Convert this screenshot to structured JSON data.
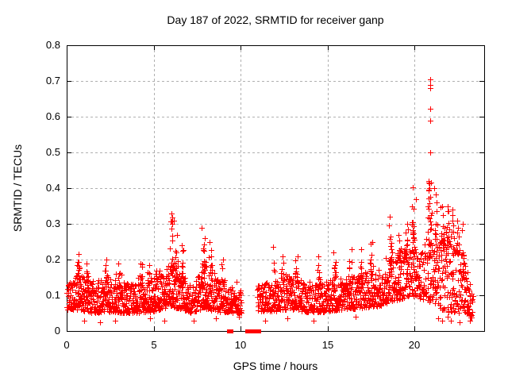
{
  "chart_data": {
    "type": "scatter",
    "title": "Day 187 of 2022, SRMTID for receiver ganp",
    "xlabel": "GPS time / hours",
    "ylabel": "SRMTID / TECUs",
    "xlim": [
      0,
      24
    ],
    "ylim": [
      0,
      0.8
    ],
    "xticks": [
      {
        "v": 0,
        "label": "0"
      },
      {
        "v": 5,
        "label": "5"
      },
      {
        "v": 10,
        "label": "10"
      },
      {
        "v": 15,
        "label": "15"
      },
      {
        "v": 20,
        "label": "20"
      }
    ],
    "yticks": [
      {
        "v": 0.0,
        "label": "0"
      },
      {
        "v": 0.1,
        "label": "0.1"
      },
      {
        "v": 0.2,
        "label": "0.2"
      },
      {
        "v": 0.3,
        "label": "0.3"
      },
      {
        "v": 0.4,
        "label": "0.4"
      },
      {
        "v": 0.5,
        "label": "0.5"
      },
      {
        "v": 0.6,
        "label": "0.6"
      },
      {
        "v": 0.7,
        "label": "0.7"
      },
      {
        "v": 0.8,
        "label": "0.8"
      }
    ],
    "grid": {
      "show": true,
      "style": "dashed",
      "color": "#b0b0b0"
    },
    "frame_color": "#000000",
    "text_color": "#000000",
    "background": "#ffffff",
    "marker": {
      "shape": "plus",
      "size": 7,
      "color": "#ff0000"
    },
    "legend": null,
    "seed": 1870,
    "scatter_model": {
      "comment": "Dense + scatter band; segments give piecewise-linear [x, yLow, yHigh] envelope with point counts; peaks are [xCenter, yMax, nPoints, xHalfWidth] columns; explicit points read directly off the plot.",
      "segments": [
        {
          "x0": 0.0,
          "x1": 10.05,
          "n": 1000,
          "levels": [
            [
              0,
              0.06,
              0.13
            ],
            [
              0.65,
              0.06,
              0.16
            ],
            [
              1.5,
              0.05,
              0.14
            ],
            [
              2.3,
              0.055,
              0.15
            ],
            [
              3.1,
              0.05,
              0.14
            ],
            [
              4.0,
              0.05,
              0.13
            ],
            [
              5.0,
              0.055,
              0.15
            ],
            [
              6.0,
              0.07,
              0.19
            ],
            [
              6.6,
              0.06,
              0.16
            ],
            [
              7.2,
              0.05,
              0.13
            ],
            [
              7.9,
              0.065,
              0.18
            ],
            [
              8.5,
              0.055,
              0.15
            ],
            [
              9.3,
              0.05,
              0.13
            ],
            [
              10.05,
              0.05,
              0.12
            ]
          ]
        },
        {
          "x0": 10.95,
          "x1": 23.35,
          "n": 1150,
          "levels": [
            [
              10.95,
              0.055,
              0.13
            ],
            [
              12.0,
              0.055,
              0.14
            ],
            [
              12.5,
              0.06,
              0.16
            ],
            [
              13.2,
              0.06,
              0.15
            ],
            [
              14.0,
              0.05,
              0.13
            ],
            [
              15.0,
              0.055,
              0.14
            ],
            [
              15.6,
              0.06,
              0.16
            ],
            [
              16.2,
              0.06,
              0.15
            ],
            [
              17.0,
              0.065,
              0.16
            ],
            [
              18.0,
              0.07,
              0.18
            ],
            [
              18.6,
              0.08,
              0.2
            ],
            [
              19.2,
              0.09,
              0.22
            ],
            [
              19.8,
              0.1,
              0.24
            ],
            [
              20.4,
              0.09,
              0.25
            ],
            [
              21.0,
              0.08,
              0.27
            ],
            [
              21.6,
              0.06,
              0.26
            ],
            [
              22.1,
              0.05,
              0.25
            ],
            [
              22.5,
              0.05,
              0.24
            ],
            [
              22.9,
              0.05,
              0.2
            ],
            [
              23.1,
              0.04,
              0.15
            ],
            [
              23.35,
              0.03,
              0.1
            ]
          ]
        }
      ],
      "peaks": [
        [
          0.65,
          0.215,
          14,
          0.1
        ],
        [
          1.15,
          0.19,
          10,
          0.08
        ],
        [
          2.3,
          0.2,
          10,
          0.1
        ],
        [
          3.05,
          0.19,
          8,
          0.08
        ],
        [
          4.3,
          0.19,
          8,
          0.1
        ],
        [
          4.75,
          0.185,
          8,
          0.08
        ],
        [
          5.2,
          0.17,
          6,
          0.08
        ],
        [
          6.05,
          0.33,
          22,
          0.12
        ],
        [
          6.3,
          0.27,
          10,
          0.08
        ],
        [
          6.65,
          0.24,
          10,
          0.08
        ],
        [
          7.9,
          0.29,
          16,
          0.1
        ],
        [
          8.3,
          0.25,
          10,
          0.1
        ],
        [
          9.0,
          0.2,
          8,
          0.08
        ],
        [
          11.9,
          0.236,
          4,
          0.04
        ],
        [
          12.4,
          0.21,
          8,
          0.08
        ],
        [
          13.2,
          0.21,
          10,
          0.1
        ],
        [
          14.5,
          0.21,
          8,
          0.08
        ],
        [
          15.4,
          0.22,
          10,
          0.08
        ],
        [
          16.3,
          0.23,
          10,
          0.08
        ],
        [
          16.9,
          0.23,
          10,
          0.08
        ],
        [
          17.5,
          0.25,
          10,
          0.08
        ],
        [
          18.6,
          0.32,
          16,
          0.1
        ],
        [
          19.1,
          0.27,
          12,
          0.1
        ],
        [
          19.5,
          0.3,
          12,
          0.1
        ],
        [
          19.95,
          0.37,
          18,
          0.1
        ],
        [
          20.85,
          0.42,
          20,
          0.12
        ],
        [
          21.2,
          0.4,
          12,
          0.08
        ],
        [
          21.6,
          0.35,
          12,
          0.08
        ],
        [
          21.9,
          0.35,
          12,
          0.08
        ],
        [
          22.2,
          0.34,
          10,
          0.08
        ],
        [
          22.5,
          0.31,
          8,
          0.08
        ],
        [
          22.8,
          0.3,
          8,
          0.08
        ]
      ],
      "explicit_high_points": [
        [
          19.9,
          0.402
        ],
        [
          20.8,
          0.415
        ],
        [
          20.85,
          0.4
        ],
        [
          20.88,
          0.59
        ],
        [
          20.88,
          0.705
        ],
        [
          20.9,
          0.5
        ],
        [
          20.9,
          0.622
        ],
        [
          20.9,
          0.69
        ],
        [
          20.92,
          0.68
        ],
        [
          20.93,
          0.415
        ]
      ],
      "explicit_low_points": [
        [
          1.0,
          0.03
        ],
        [
          1.9,
          0.025
        ],
        [
          2.8,
          0.03
        ],
        [
          4.8,
          0.035
        ],
        [
          5.6,
          0.03
        ],
        [
          7.3,
          0.03
        ],
        [
          8.6,
          0.035
        ],
        [
          9.9,
          0.04
        ],
        [
          11.4,
          0.03
        ],
        [
          12.7,
          0.035
        ],
        [
          14.2,
          0.03
        ],
        [
          16.6,
          0.04
        ],
        [
          21.35,
          0.035
        ],
        [
          21.6,
          0.03
        ],
        [
          21.9,
          0.04
        ],
        [
          22.1,
          0.03
        ],
        [
          22.6,
          0.025
        ],
        [
          23.2,
          0.03
        ]
      ]
    },
    "zero_gap_markers": {
      "shape": "filled-square",
      "size": 5,
      "color": "#ff0000",
      "y": 0,
      "x": [
        9.31,
        9.44,
        10.36,
        10.45,
        10.58,
        10.77,
        10.9,
        11.04
      ]
    }
  }
}
